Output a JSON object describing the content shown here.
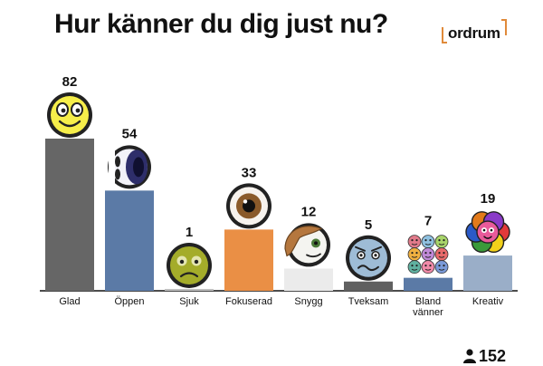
{
  "title": "Hur känner du dig just nu?",
  "brand": {
    "name": "ordrum",
    "accent": "#e08a3a"
  },
  "respondents": {
    "icon": "person-icon",
    "count": "152"
  },
  "chart_data": {
    "type": "bar",
    "title": "Hur känner du dig just nu?",
    "xlabel": "",
    "ylabel": "",
    "ylim": [
      0,
      82
    ],
    "grid": false,
    "categories": [
      "Glad",
      "Öppen",
      "Sjuk",
      "Fokuserad",
      "Snygg",
      "Tveksam",
      "Bland vänner",
      "Kreativ"
    ],
    "values": [
      82,
      54,
      1,
      33,
      12,
      5,
      7,
      19
    ],
    "colors": [
      "#666666",
      "#5b7aa6",
      "#bfbfbf",
      "#ea8f45",
      "#ebebeb",
      "#606060",
      "#5b7aa6",
      "#9aaec8"
    ],
    "icons": [
      "smiley-icon",
      "eye-peek-icon",
      "sick-face-icon",
      "eye-icon",
      "hair-face-icon",
      "worried-face-icon",
      "group-faces-icon",
      "flower-face-icon"
    ]
  }
}
